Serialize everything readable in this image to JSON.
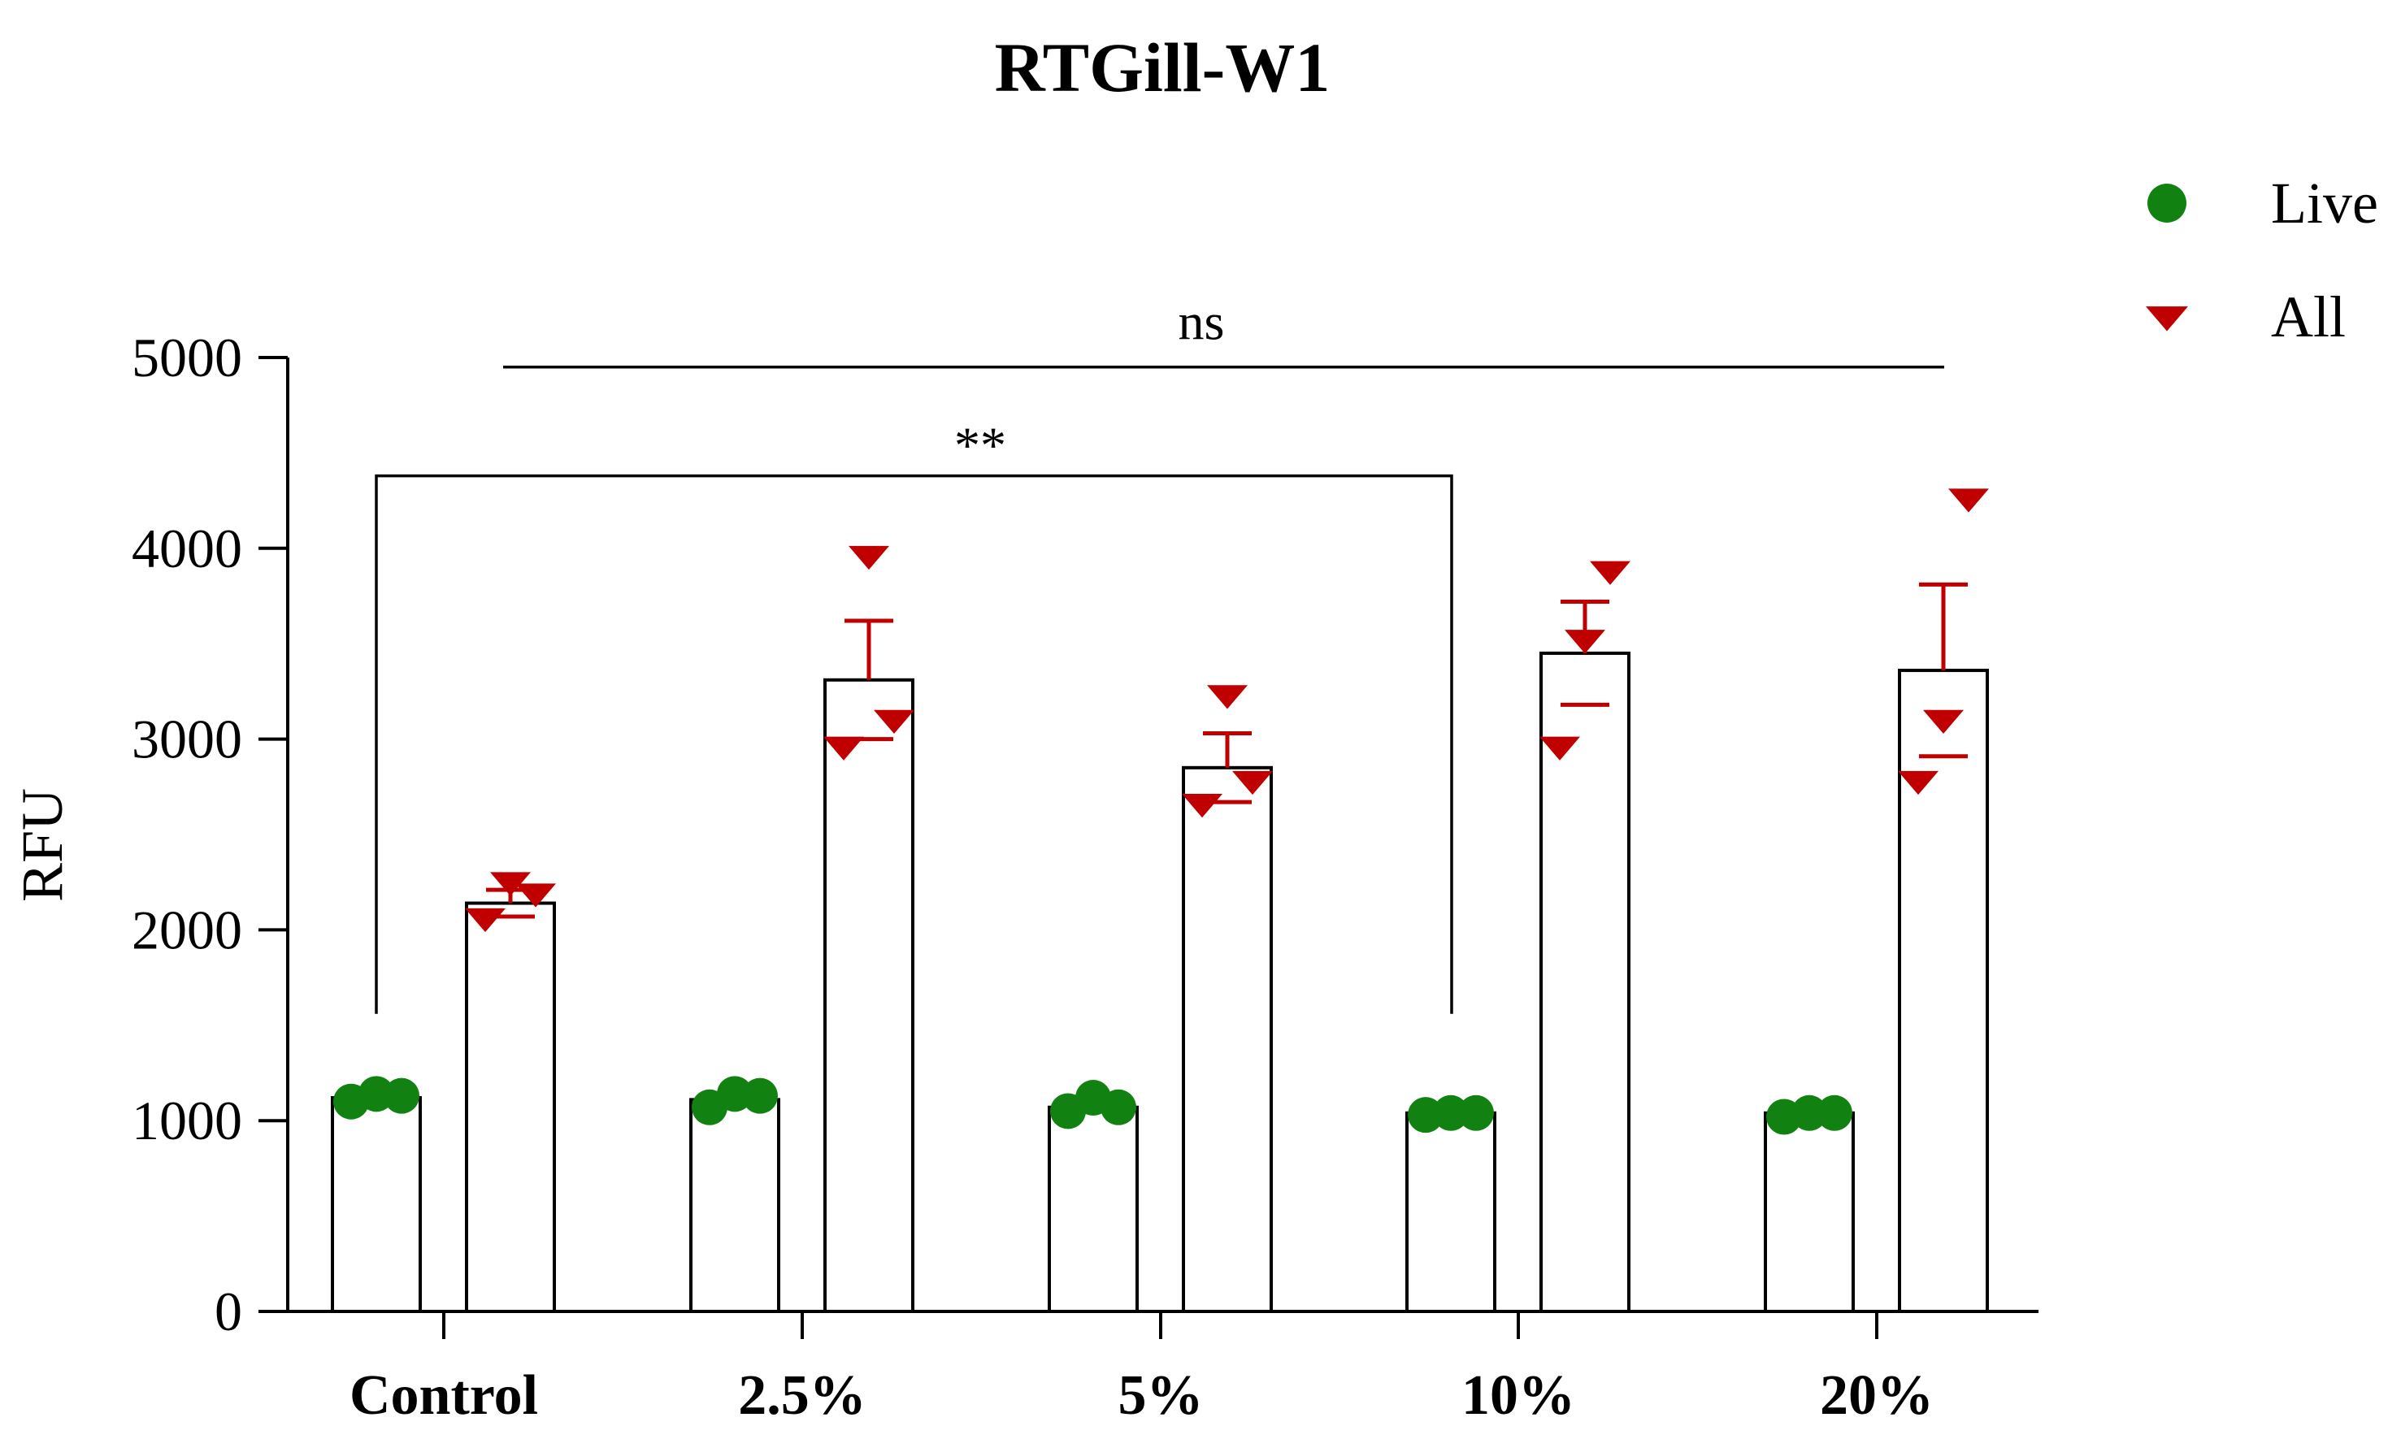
{
  "chart_data": {
    "type": "bar",
    "title": "RTGill-W1",
    "xlabel": "",
    "ylabel": "RFU",
    "ylim": [
      0,
      5000
    ],
    "yticks": [
      0,
      1000,
      2000,
      3000,
      4000,
      5000
    ],
    "categories": [
      "Control",
      "2.5%",
      "5%",
      "10%",
      "20%"
    ],
    "series": [
      {
        "name": "Live",
        "color": "#118211",
        "marker": "circle",
        "means": [
          1120,
          1110,
          1070,
          1040,
          1040
        ],
        "points": [
          [
            1100,
            1140,
            1130
          ],
          [
            1070,
            1140,
            1130
          ],
          [
            1050,
            1120,
            1070
          ],
          [
            1030,
            1040,
            1040
          ],
          [
            1020,
            1040,
            1040
          ]
        ]
      },
      {
        "name": "All",
        "color": "#c00000",
        "marker": "triangle-down",
        "means": [
          2140,
          3310,
          2850,
          3450,
          3360
        ],
        "sem": [
          70,
          310,
          180,
          270,
          450
        ],
        "points": [
          [
            2060,
            2250,
            2190
          ],
          [
            2960,
            3960,
            3100
          ],
          [
            2660,
            3230,
            2780
          ],
          [
            2960,
            3520,
            3880
          ],
          [
            2780,
            3100,
            4260
          ]
        ]
      }
    ],
    "legend": {
      "position": "top-right",
      "entries": [
        "Live",
        "All"
      ]
    },
    "annotations": [
      {
        "label": "**",
        "from": "Control",
        "to": "10%",
        "y": 4380
      },
      {
        "label": "ns",
        "from": "Control",
        "to": "20%",
        "y": 4950
      }
    ]
  }
}
